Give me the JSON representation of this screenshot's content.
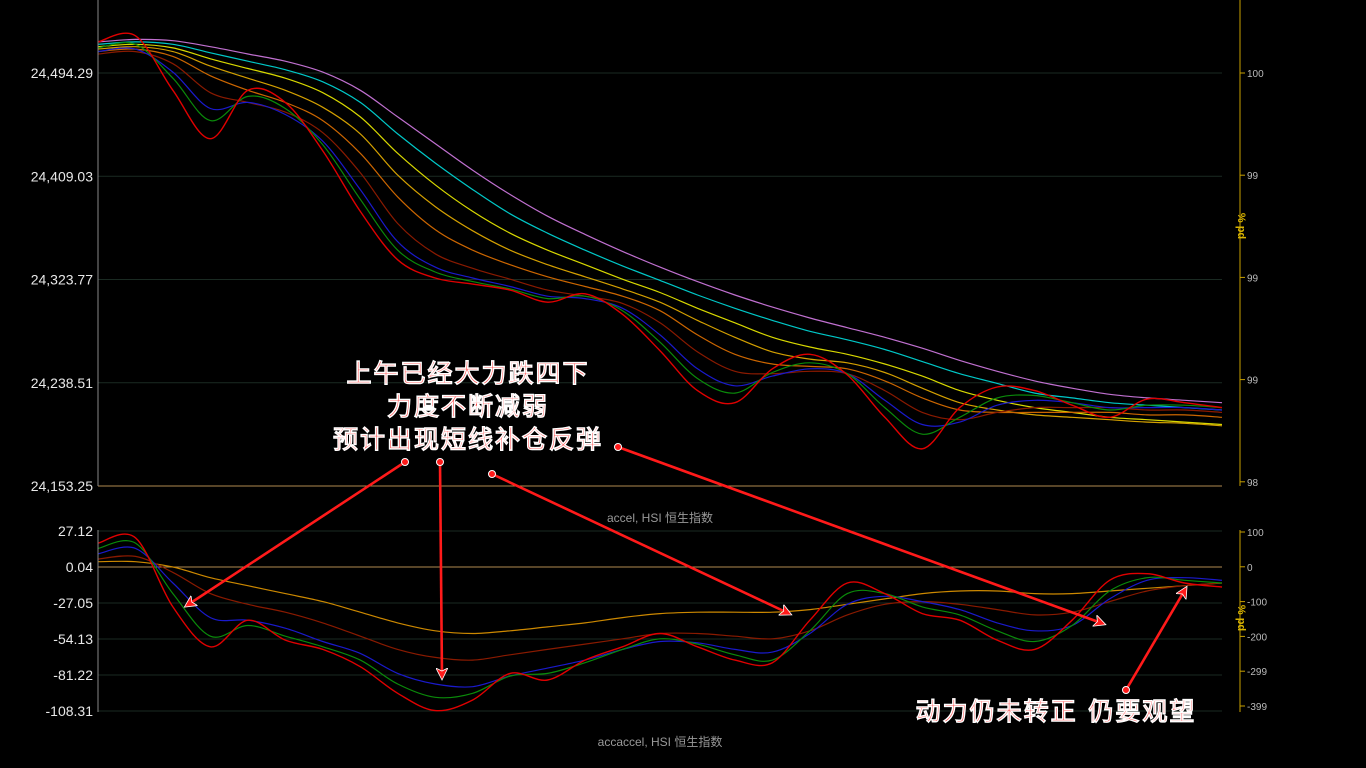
{
  "colors": {
    "background": "#000000",
    "price": "#e00000",
    "annotation": "#ff2222",
    "axis_right": "#c8a000",
    "grid": "#1a2a22"
  },
  "chart_data": [
    {
      "type": "line",
      "panel": "price",
      "title": "",
      "y_ticks": [
        "24,494.29",
        "24,409.03",
        "24,323.77",
        "24,238.51",
        "24,153.25"
      ],
      "y_tick_values": [
        24494.29,
        24409.03,
        24323.77,
        24238.51,
        24153.25
      ],
      "ylim": [
        24153.25,
        24560
      ],
      "right_axis": {
        "label": "% pd",
        "ticks": [
          "100",
          "99",
          "99",
          "99",
          "98"
        ]
      },
      "x": [
        0,
        10,
        20,
        30,
        40,
        50,
        60,
        70,
        80,
        90,
        100,
        110,
        120,
        130,
        140,
        150,
        160,
        170,
        180,
        190,
        200,
        210,
        220,
        230,
        240,
        250,
        260,
        270,
        280,
        290,
        300
      ],
      "series": [
        {
          "color": "#e00000",
          "values": [
            24520,
            24525,
            24480,
            24440,
            24480,
            24470,
            24430,
            24380,
            24340,
            24325,
            24320,
            24315,
            24305,
            24312,
            24295,
            24265,
            24232,
            24222,
            24250,
            24262,
            24245,
            24210,
            24184,
            24218,
            24235,
            24232,
            24220,
            24210,
            24225,
            24222,
            24218
          ]
        },
        {
          "color": "#0a8a0a",
          "values": [
            24515,
            24518,
            24490,
            24455,
            24475,
            24465,
            24435,
            24390,
            24348,
            24330,
            24322,
            24316,
            24308,
            24310,
            24298,
            24272,
            24242,
            24230,
            24247,
            24255,
            24246,
            24218,
            24196,
            24210,
            24226,
            24228,
            24222,
            24216,
            24220,
            24220,
            24218
          ]
        },
        {
          "color": "#1a1acc",
          "values": [
            24512,
            24514,
            24495,
            24465,
            24470,
            24460,
            24438,
            24398,
            24355,
            24334,
            24325,
            24318,
            24310,
            24308,
            24300,
            24278,
            24250,
            24236,
            24244,
            24250,
            24246,
            24224,
            24204,
            24206,
            24220,
            24224,
            24222,
            24218,
            24218,
            24218,
            24216
          ]
        },
        {
          "color": "#8a1a00",
          "values": [
            24510,
            24512,
            24502,
            24478,
            24470,
            24462,
            24445,
            24412,
            24370,
            24345,
            24333,
            24324,
            24315,
            24310,
            24304,
            24288,
            24264,
            24248,
            24246,
            24248,
            24246,
            24232,
            24214,
            24208,
            24214,
            24218,
            24218,
            24218,
            24216,
            24216,
            24214
          ]
        },
        {
          "color": "#cc6600",
          "values": [
            24512,
            24514,
            24508,
            24492,
            24480,
            24470,
            24455,
            24428,
            24392,
            24365,
            24348,
            24336,
            24326,
            24318,
            24310,
            24298,
            24278,
            24262,
            24254,
            24252,
            24250,
            24240,
            24226,
            24216,
            24214,
            24214,
            24214,
            24214,
            24212,
            24212,
            24210
          ]
        },
        {
          "color": "#d4a000",
          "values": [
            24514,
            24516,
            24512,
            24500,
            24490,
            24480,
            24466,
            24444,
            24410,
            24384,
            24364,
            24348,
            24336,
            24326,
            24316,
            24305,
            24290,
            24276,
            24264,
            24258,
            24255,
            24247,
            24234,
            24222,
            24216,
            24212,
            24210,
            24208,
            24206,
            24205,
            24203
          ]
        },
        {
          "color": "#d8d800",
          "values": [
            24516,
            24518,
            24515,
            24506,
            24498,
            24490,
            24478,
            24458,
            24428,
            24402,
            24380,
            24362,
            24348,
            24336,
            24324,
            24313,
            24300,
            24288,
            24276,
            24268,
            24262,
            24254,
            24244,
            24232,
            24224,
            24218,
            24214,
            24210,
            24208,
            24206,
            24204
          ]
        },
        {
          "color": "#00c8c8",
          "values": [
            24518,
            24520,
            24518,
            24511,
            24504,
            24497,
            24487,
            24470,
            24444,
            24420,
            24398,
            24378,
            24362,
            24348,
            24335,
            24323,
            24311,
            24300,
            24290,
            24281,
            24274,
            24266,
            24256,
            24246,
            24238,
            24230,
            24226,
            24222,
            24220,
            24218,
            24216
          ]
        },
        {
          "color": "#c070d0",
          "values": [
            24520,
            24522,
            24521,
            24516,
            24510,
            24504,
            24495,
            24480,
            24458,
            24436,
            24414,
            24394,
            24376,
            24361,
            24347,
            24334,
            24322,
            24311,
            24301,
            24292,
            24284,
            24276,
            24267,
            24257,
            24248,
            24240,
            24234,
            24229,
            24226,
            24224,
            24222
          ]
        }
      ]
    },
    {
      "type": "line",
      "panel": "acceleration",
      "title": "accel, HSI 恒生指数",
      "y_ticks": [
        "27.12",
        "0.04",
        "-27.05",
        "-54.13",
        "-81.22",
        "-108.31"
      ],
      "y_tick_values": [
        27.12,
        0.04,
        -27.05,
        -54.13,
        -81.22,
        -108.31
      ],
      "ylim": [
        -108.31,
        27.12
      ],
      "right_axis": {
        "label": "% pd",
        "ticks": [
          "100",
          "0",
          "-100",
          "-200",
          "-299",
          "-399"
        ]
      },
      "x": [
        0,
        10,
        20,
        30,
        40,
        50,
        60,
        70,
        80,
        90,
        100,
        110,
        120,
        130,
        140,
        150,
        160,
        170,
        180,
        190,
        200,
        210,
        220,
        230,
        240,
        250,
        260,
        270,
        280,
        290,
        300
      ],
      "series": [
        {
          "color": "#e00000",
          "values": [
            18,
            22,
            -30,
            -60,
            -40,
            -55,
            -62,
            -75,
            -95,
            -108,
            -100,
            -80,
            -85,
            -70,
            -60,
            -50,
            -60,
            -70,
            -72,
            -40,
            -12,
            -20,
            -35,
            -40,
            -55,
            -62,
            -40,
            -10,
            -5,
            -12,
            -15
          ]
        },
        {
          "color": "#0a8a0a",
          "values": [
            14,
            18,
            -20,
            -52,
            -44,
            -52,
            -60,
            -70,
            -88,
            -98,
            -95,
            -82,
            -80,
            -72,
            -62,
            -54,
            -58,
            -66,
            -70,
            -48,
            -20,
            -20,
            -30,
            -36,
            -48,
            -56,
            -44,
            -18,
            -8,
            -10,
            -12
          ]
        },
        {
          "color": "#1a1acc",
          "values": [
            10,
            14,
            -12,
            -38,
            -40,
            -46,
            -56,
            -65,
            -80,
            -88,
            -90,
            -82,
            -76,
            -70,
            -62,
            -56,
            -57,
            -62,
            -64,
            -50,
            -28,
            -22,
            -26,
            -32,
            -42,
            -48,
            -44,
            -24,
            -10,
            -8,
            -10
          ]
        },
        {
          "color": "#8a1a00",
          "values": [
            6,
            8,
            -4,
            -20,
            -28,
            -34,
            -42,
            -52,
            -62,
            -68,
            -70,
            -66,
            -62,
            -58,
            -54,
            -50,
            -50,
            -52,
            -54,
            -48,
            -36,
            -28,
            -26,
            -28,
            -32,
            -36,
            -34,
            -26,
            -18,
            -14,
            -12
          ]
        },
        {
          "color": "#cc8800",
          "values": [
            4,
            4,
            0,
            -8,
            -14,
            -20,
            -26,
            -34,
            -42,
            -48,
            -50,
            -48,
            -45,
            -42,
            -38,
            -35,
            -34,
            -34,
            -34,
            -32,
            -28,
            -24,
            -20,
            -18,
            -18,
            -20,
            -20,
            -18,
            -16,
            -14,
            -12
          ]
        }
      ]
    }
  ],
  "bottom_title": "accaccel, HSI 恒生指数",
  "annotations": {
    "main_lines": [
      "上午已经大力跌四下",
      "力度不断减弱",
      "预计出现短线补仓反弹"
    ],
    "bottom_right": "动力仍未转正 仍要观望"
  }
}
